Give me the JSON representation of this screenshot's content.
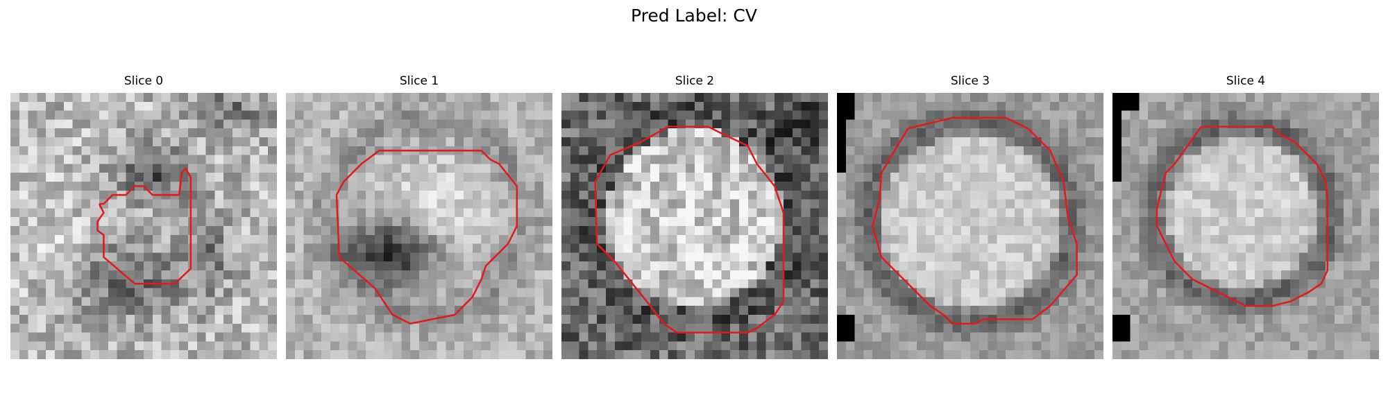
{
  "suptitle": "Pred Label: CV",
  "contour_color": "#e31a1c",
  "panels": [
    {
      "title": "Slice 0"
    },
    {
      "title": "Slice 1"
    },
    {
      "title": "Slice 2"
    },
    {
      "title": "Slice 3"
    },
    {
      "title": "Slice 4"
    }
  ]
}
